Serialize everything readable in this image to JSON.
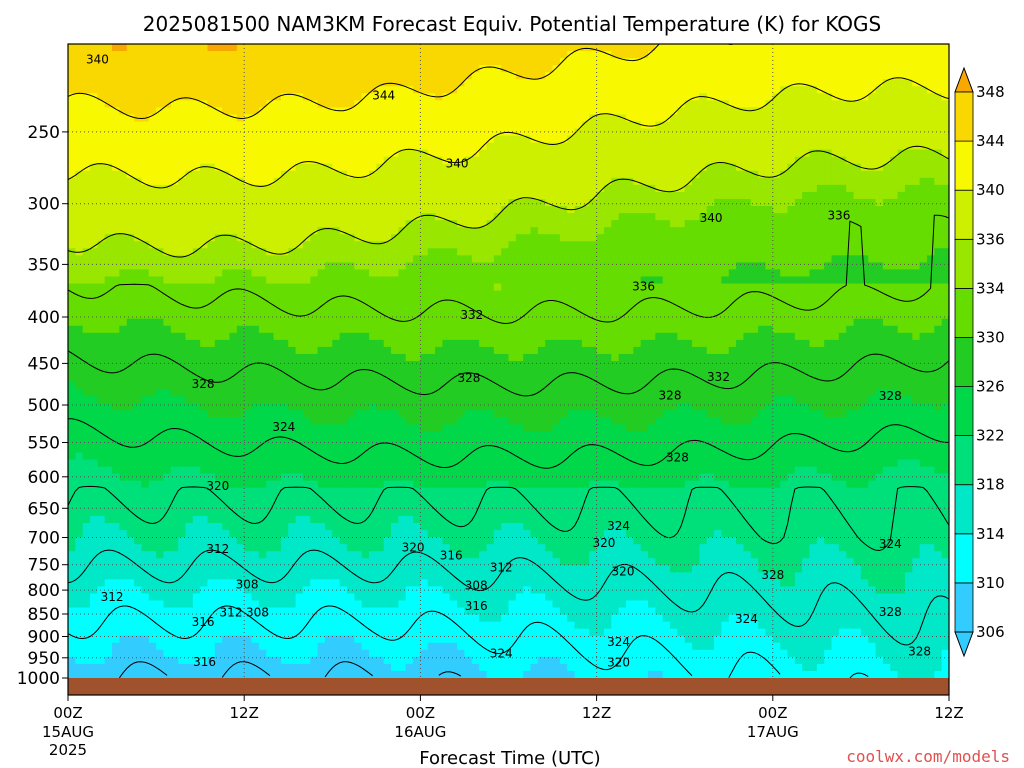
{
  "chart_data": {
    "type": "heatmap",
    "title": "2025081500 NAM3KM Forecast Equiv. Potential Temperature (K) for KOGS",
    "xlabel": "Forecast Time (UTC)",
    "ylabel": "",
    "x_ticks": [
      {
        "hours": 0,
        "label": "00Z",
        "date": "15AUG",
        "year": "2025"
      },
      {
        "hours": 12,
        "label": "12Z",
        "date": "",
        "year": ""
      },
      {
        "hours": 24,
        "label": "00Z",
        "date": "16AUG",
        "year": ""
      },
      {
        "hours": 36,
        "label": "12Z",
        "date": "",
        "year": ""
      },
      {
        "hours": 48,
        "label": "00Z",
        "date": "17AUG",
        "year": ""
      },
      {
        "hours": 60,
        "label": "12Z",
        "date": "",
        "year": ""
      }
    ],
    "xlim_hours": [
      0,
      60
    ],
    "y_scale": "log-pressure (hPa), inverted",
    "ylim_hpa": [
      1000,
      200
    ],
    "y_ticks": [
      250,
      300,
      350,
      400,
      450,
      500,
      550,
      600,
      650,
      700,
      750,
      800,
      850,
      900,
      950,
      1000
    ],
    "grid": "dotted",
    "colorbar": {
      "levels": [
        306,
        310,
        314,
        318,
        322,
        326,
        330,
        334,
        336,
        340,
        344,
        348
      ],
      "colors": [
        "#33ccff",
        "#00ffff",
        "#00e8c8",
        "#00e07a",
        "#00d84a",
        "#22cc22",
        "#66dd00",
        "#99e600",
        "#ccf000",
        "#f8f800",
        "#f8d800",
        "#f8a800"
      ],
      "below_color": "#33ccff",
      "above_color": "#f8a800"
    },
    "field_ranges_K": {
      "low_levels": [
        306,
        318
      ],
      "mid_levels": [
        318,
        332
      ],
      "upper_levels": [
        332,
        346
      ]
    },
    "ground_color": "#a0522d",
    "contour_labels": [
      {
        "text": "340",
        "t": 2.0,
        "p": 208
      },
      {
        "text": "344",
        "t": 21.5,
        "p": 228
      },
      {
        "text": "340",
        "t": 26.5,
        "p": 271
      },
      {
        "text": "340",
        "t": 43.8,
        "p": 311
      },
      {
        "text": "336",
        "t": 52.5,
        "p": 309
      },
      {
        "text": "336",
        "t": 39.2,
        "p": 370
      },
      {
        "text": "332",
        "t": 27.5,
        "p": 398
      },
      {
        "text": "332",
        "t": 44.3,
        "p": 466
      },
      {
        "text": "328",
        "t": 9.2,
        "p": 474
      },
      {
        "text": "328",
        "t": 27.3,
        "p": 467
      },
      {
        "text": "328",
        "t": 41.0,
        "p": 488
      },
      {
        "text": "328",
        "t": 56.0,
        "p": 489
      },
      {
        "text": "328",
        "t": 41.5,
        "p": 571
      },
      {
        "text": "324",
        "t": 14.7,
        "p": 529
      },
      {
        "text": "324",
        "t": 37.5,
        "p": 680
      },
      {
        "text": "324",
        "t": 56.0,
        "p": 712
      },
      {
        "text": "324",
        "t": 46.2,
        "p": 861
      },
      {
        "text": "324",
        "t": 29.5,
        "p": 940
      },
      {
        "text": "324",
        "t": 37.5,
        "p": 913
      },
      {
        "text": "320",
        "t": 10.2,
        "p": 614
      },
      {
        "text": "320",
        "t": 23.5,
        "p": 718
      },
      {
        "text": "320",
        "t": 36.5,
        "p": 710
      },
      {
        "text": "320",
        "t": 37.8,
        "p": 763
      },
      {
        "text": "320",
        "t": 37.5,
        "p": 962
      },
      {
        "text": "316",
        "t": 26.1,
        "p": 733
      },
      {
        "text": "316",
        "t": 27.8,
        "p": 833
      },
      {
        "text": "316",
        "t": 9.2,
        "p": 868
      },
      {
        "text": "316",
        "t": 9.3,
        "p": 960
      },
      {
        "text": "312",
        "t": 10.2,
        "p": 721
      },
      {
        "text": "312",
        "t": 29.5,
        "p": 755
      },
      {
        "text": "312",
        "t": 3.0,
        "p": 814
      },
      {
        "text": "312",
        "t": 11.1,
        "p": 847
      },
      {
        "text": "308",
        "t": 12.9,
        "p": 847
      },
      {
        "text": "308",
        "t": 12.2,
        "p": 789
      },
      {
        "text": "308",
        "t": 27.8,
        "p": 791
      },
      {
        "text": "328",
        "t": 48.0,
        "p": 770
      },
      {
        "text": "328",
        "t": 56.0,
        "p": 846
      },
      {
        "text": "328",
        "t": 58.0,
        "p": 935
      }
    ],
    "credit": "coolwx.com/models"
  }
}
